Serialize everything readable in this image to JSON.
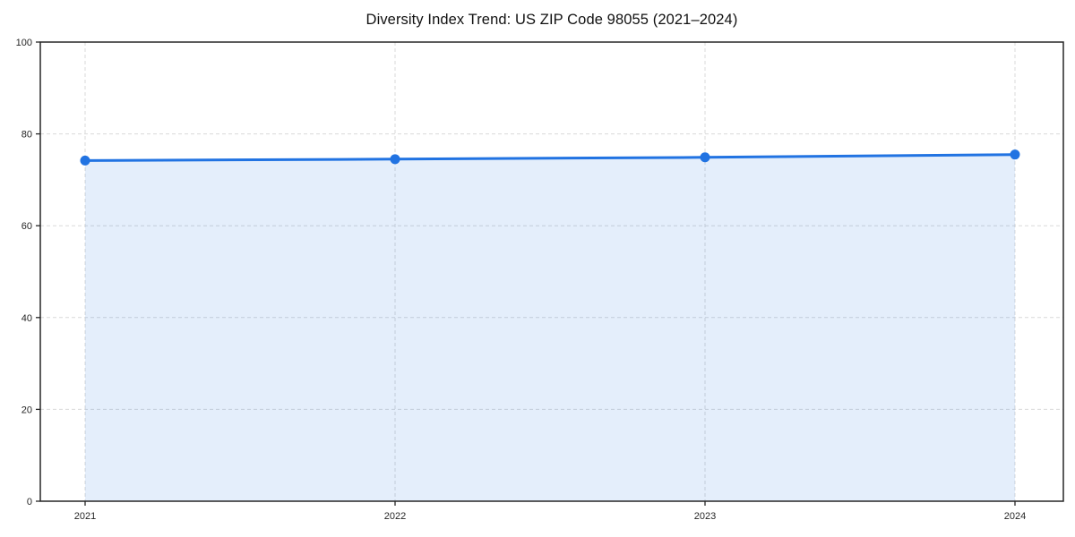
{
  "figure": {
    "background": "#ffffff"
  },
  "chart_data": {
    "type": "area",
    "title": "Diversity Index Trend: US ZIP Code 98055 (2021–2024)",
    "x_categories": [
      "2021",
      "2022",
      "2023",
      "2024"
    ],
    "series": [
      {
        "name": "Diversity Index",
        "values": [
          74.2,
          74.5,
          74.9,
          75.5
        ]
      }
    ],
    "xlabel": "",
    "ylabel": "",
    "ylim": [
      0,
      100
    ],
    "yticks": [
      0,
      20,
      40,
      60,
      80,
      100
    ],
    "grid": "dashed",
    "legend": "none",
    "style": {
      "line_color": "#2173E2",
      "marker_color": "#2173E2",
      "fill_color": "rgba(33,115,226,0.12)",
      "grid_color": "#d9d9d9",
      "axis_color": "#262626",
      "text_color": "#262626"
    }
  }
}
